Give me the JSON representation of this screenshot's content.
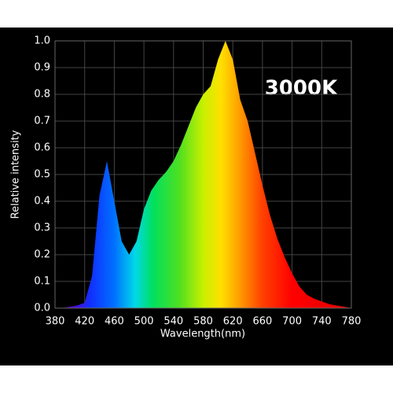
{
  "chart_data": {
    "type": "area",
    "annotation": "3000K",
    "x_label": "Wavelength(nm)",
    "y_label": "Relative intensity",
    "x": [
      380,
      390,
      400,
      410,
      420,
      430,
      440,
      450,
      460,
      470,
      480,
      490,
      500,
      510,
      520,
      530,
      540,
      550,
      560,
      570,
      580,
      590,
      600,
      610,
      620,
      630,
      640,
      650,
      660,
      670,
      680,
      690,
      700,
      710,
      720,
      730,
      740,
      750,
      760,
      770,
      780
    ],
    "values": [
      0,
      0,
      0.005,
      0.01,
      0.02,
      0.12,
      0.42,
      0.55,
      0.4,
      0.25,
      0.2,
      0.25,
      0.37,
      0.44,
      0.48,
      0.51,
      0.55,
      0.61,
      0.68,
      0.75,
      0.8,
      0.83,
      0.93,
      1.0,
      0.93,
      0.78,
      0.7,
      0.58,
      0.46,
      0.35,
      0.26,
      0.19,
      0.13,
      0.08,
      0.05,
      0.035,
      0.025,
      0.015,
      0.01,
      0.005,
      0
    ],
    "xlim": [
      380,
      780
    ],
    "xticks": [
      380,
      420,
      460,
      500,
      540,
      580,
      620,
      660,
      700,
      740,
      780
    ],
    "ylim": [
      0,
      1
    ],
    "yticks": [
      {
        "value": 0,
        "label": "0.0"
      },
      0.1,
      0.2,
      0.3,
      0.4,
      0.5,
      0.6,
      0.7,
      0.8,
      0.9,
      {
        "value": 1,
        "label": "1.0"
      }
    ],
    "grid": true
  }
}
